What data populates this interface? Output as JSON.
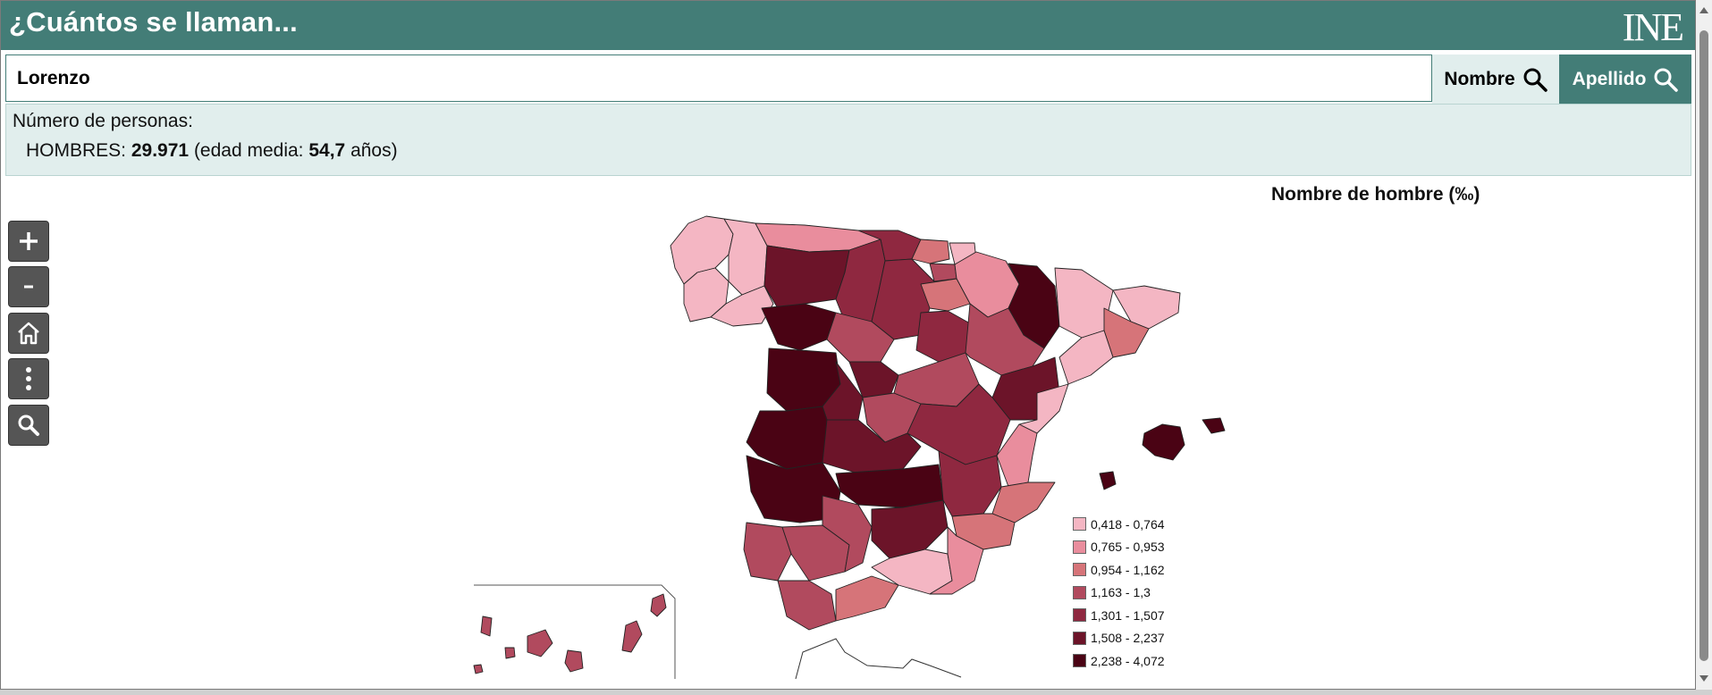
{
  "header": {
    "title": "¿Cuántos se llaman...",
    "logo_text": "INE"
  },
  "search": {
    "value": "Lorenzo",
    "nombre_label": "Nombre",
    "apellido_label": "Apellido"
  },
  "info": {
    "label": "Número de personas:",
    "gender_label": "HOMBRES:",
    "count": "29.971",
    "age_prefix": "(edad media:",
    "age_value": "54,7",
    "age_suffix": "años)"
  },
  "map": {
    "title": "Nombre de hombre (‰)",
    "controls": [
      "zoom-in",
      "zoom-out",
      "home",
      "more",
      "search"
    ],
    "legend": [
      {
        "range": "0,418 - 0,764",
        "color": "#f4b6c3"
      },
      {
        "range": "0,765 - 0,953",
        "color": "#e98d9d"
      },
      {
        "range": "0,954 - 1,162",
        "color": "#d67479"
      },
      {
        "range": "1,163 - 1,3",
        "color": "#b14a5e"
      },
      {
        "range": "1,301 - 1,507",
        "color": "#8f2840"
      },
      {
        "range": "1,508 - 2,237",
        "color": "#6c1429"
      },
      {
        "range": "2,238 - 4,072",
        "color": "#4a0314"
      }
    ]
  }
}
